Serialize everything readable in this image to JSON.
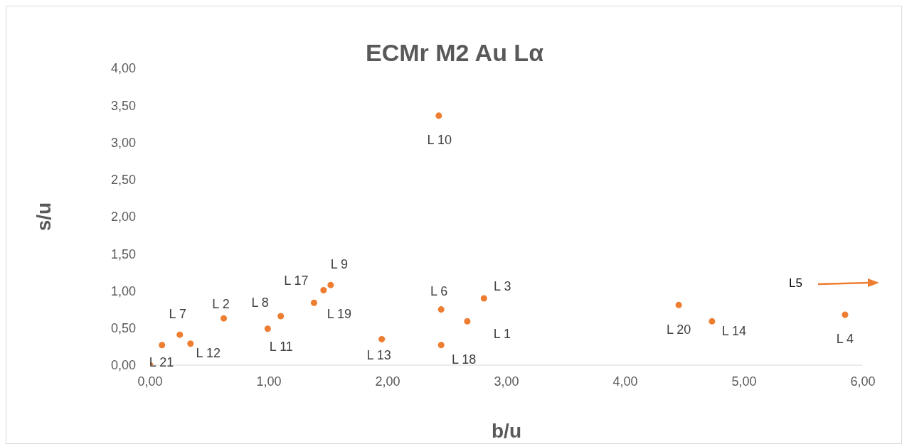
{
  "chart_data": {
    "type": "scatter",
    "title": "ECMr  M2 Au Lα",
    "xlabel": "b/u",
    "ylabel": "s/u",
    "x": [
      0,
      0.1,
      0.25,
      0.34,
      0.62,
      0.99,
      1.1,
      1.38,
      1.46,
      1.52,
      1.95,
      2.43,
      2.45,
      2.45,
      2.67,
      2.81,
      4.45,
      4.73,
      5.85
    ],
    "series": [
      {
        "color": "#ed7d31",
        "values": [
          0,
          0.27,
          0.41,
          0.29,
          0.63,
          0.49,
          0.66,
          0.84,
          1.01,
          1.08,
          0.35,
          3.36,
          0.75,
          0.27,
          0.59,
          0.9,
          0.81,
          0.59,
          0.68
        ]
      }
    ],
    "marker": "circle",
    "grid": false,
    "legend": false,
    "xlim": [
      0,
      6
    ],
    "xticks": [
      {
        "value": 0,
        "label": "0,00"
      },
      {
        "value": 1,
        "label": "1,00"
      },
      {
        "value": 2,
        "label": "2,00"
      },
      {
        "value": 3,
        "label": "3,00"
      },
      {
        "value": 4,
        "label": "4,00"
      },
      {
        "value": 5,
        "label": "5,00"
      },
      {
        "value": 6,
        "label": "6,00"
      }
    ],
    "ylim": [
      0,
      4
    ],
    "yticks": [
      {
        "value": 0,
        "label": "0,00"
      },
      {
        "value": 0.5,
        "label": "0,50"
      },
      {
        "value": 1,
        "label": "1,00"
      },
      {
        "value": 1.5,
        "label": "1,50"
      },
      {
        "value": 2,
        "label": "2,00"
      },
      {
        "value": 2.5,
        "label": "2,50"
      },
      {
        "value": 3,
        "label": "3,00"
      },
      {
        "value": 3.5,
        "label": "3,50"
      },
      {
        "value": 4,
        "label": "4,00"
      }
    ],
    "annotations": [
      {
        "text": "L 21",
        "x": 0,
        "y": 0
      },
      {
        "text": "L 7",
        "x": 0.25,
        "y": 0.41
      },
      {
        "text": "L 12",
        "x": 0.34,
        "y": 0.29
      },
      {
        "text": "L 2",
        "x": 0.62,
        "y": 0.63
      },
      {
        "text": "L 8",
        "x": 1.1,
        "y": 0.66
      },
      {
        "text": "L 11",
        "x": 0.99,
        "y": 0.49
      },
      {
        "text": "L 17",
        "x": 1.38,
        "y": 0.84
      },
      {
        "text": "L 9",
        "x": 1.52,
        "y": 1.08
      },
      {
        "text": "L 19",
        "x": 1.46,
        "y": 1.01
      },
      {
        "text": "L 13",
        "x": 1.95,
        "y": 0.35
      },
      {
        "text": "L 10",
        "x": 2.43,
        "y": 3.36
      },
      {
        "text": "L 6",
        "x": 2.45,
        "y": 0.75
      },
      {
        "text": "L 18",
        "x": 2.45,
        "y": 0.27
      },
      {
        "text": "L 1",
        "x": 2.67,
        "y": 0.59
      },
      {
        "text": "L 3",
        "x": 2.81,
        "y": 0.9
      },
      {
        "text": "L 20",
        "x": 4.45,
        "y": 0.81
      },
      {
        "text": "L 14",
        "x": 4.73,
        "y": 0.59
      },
      {
        "text": "L 4",
        "x": 5.85,
        "y": 0.68
      },
      "L5"
    ]
  }
}
